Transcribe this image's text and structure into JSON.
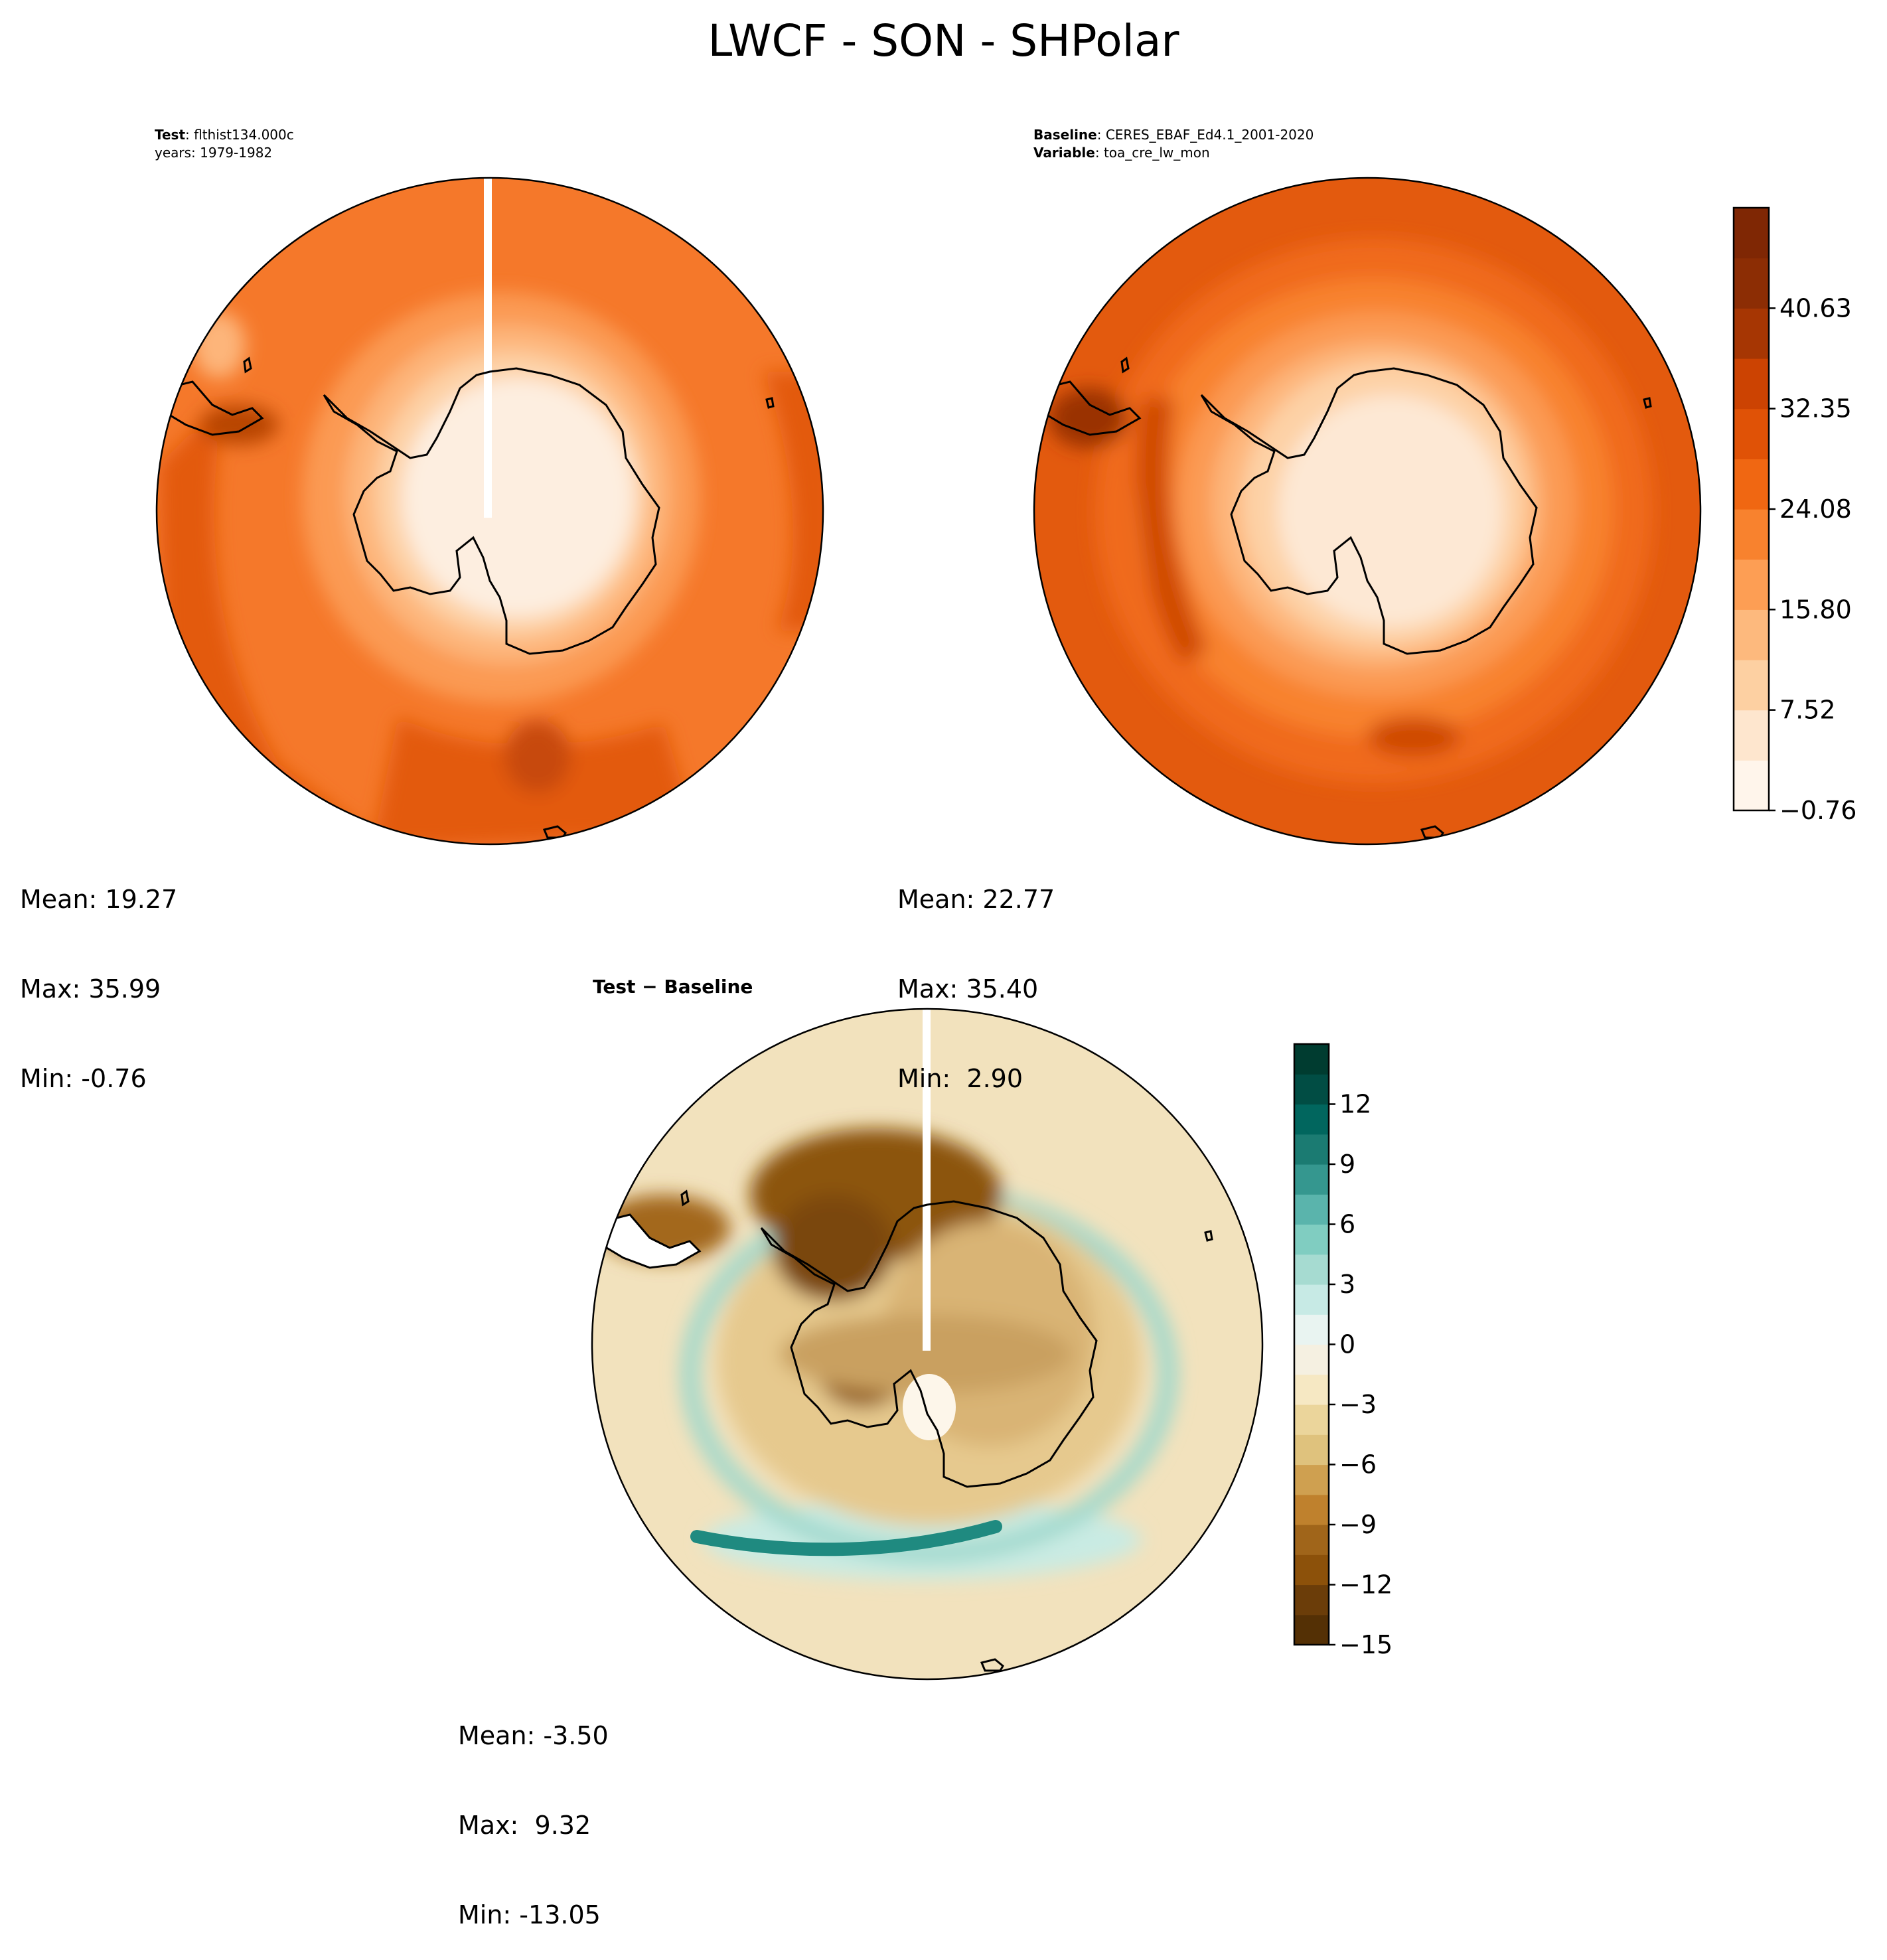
{
  "title": "LWCF - SON - SHPolar",
  "panels": [
    {
      "id": "test",
      "header": [
        {
          "label": "Test",
          "value": ": flthist134.000c"
        },
        {
          "label": "",
          "value": "years: 1979-1982"
        }
      ],
      "stats": {
        "mean": "Mean: 19.27",
        "max": "Max: 35.99",
        "min": "Min: -0.76"
      }
    },
    {
      "id": "baseline",
      "header": [
        {
          "label": "Baseline",
          "value": ": CERES_EBAF_Ed4.1_2001-2020"
        },
        {
          "label": "Variable",
          "value": ": toa_cre_lw_mon"
        }
      ],
      "stats": {
        "mean": "Mean: 22.77",
        "max": "Max: 35.40",
        "min": "Min:  2.90"
      }
    },
    {
      "id": "diff",
      "title": "Test − Baseline",
      "stats": {
        "mean": "Mean: -3.50",
        "max": "Max:  9.32",
        "min": "Min: -13.05"
      }
    }
  ],
  "colorbars": {
    "main": {
      "ticks": [
        "−0.76",
        "7.52",
        "15.80",
        "24.08",
        "32.35",
        "40.63"
      ],
      "colors": [
        "#fff5eb",
        "#fee6ce",
        "#fdd0a2",
        "#fdb97d",
        "#fd9e54",
        "#f8822e",
        "#f06712",
        "#e05206",
        "#cc4302",
        "#a63603",
        "#8c2d04",
        "#7f2704"
      ]
    },
    "diff": {
      "ticks": [
        "−15",
        "−12",
        "−9",
        "−6",
        "−3",
        "0",
        "3",
        "6",
        "9",
        "12"
      ],
      "colors": [
        "#543005",
        "#6b3d09",
        "#8c510a",
        "#a0651a",
        "#bf812d",
        "#cfa050",
        "#dfc27d",
        "#ebd59b",
        "#f6e8c3",
        "#f5f0e1",
        "#e9f4f1",
        "#c7eae5",
        "#a6dbd1",
        "#80cdc1",
        "#5ab4ac",
        "#35978f",
        "#1b7b72",
        "#01665e",
        "#014d44",
        "#003c30"
      ]
    }
  }
}
